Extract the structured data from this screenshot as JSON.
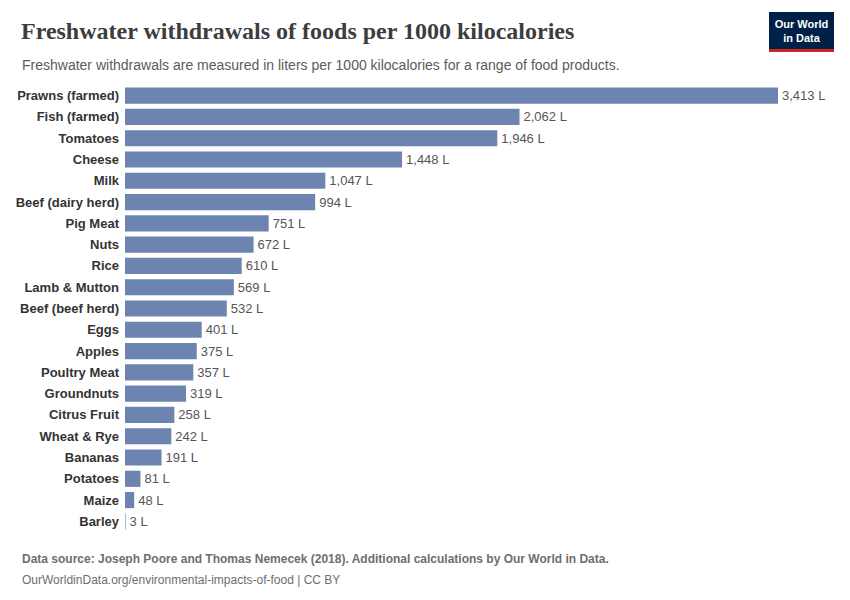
{
  "chart_data": {
    "type": "bar",
    "title": "Freshwater withdrawals of foods per 1000 kilocalories",
    "subtitle": "Freshwater withdrawals are measured in liters per 1000 kilocalories for a range of food products.",
    "source_label": "Data source:",
    "source": "Joseph Poore and Thomas Nemecek (2018). Additional calculations by Our World in Data.",
    "footer": "OurWorldinData.org/environmental-impacts-of-food | CC BY",
    "logo": [
      "Our World",
      "in Data"
    ],
    "categories": [
      "Prawns (farmed)",
      "Fish (farmed)",
      "Tomatoes",
      "Cheese",
      "Milk",
      "Beef (dairy herd)",
      "Pig Meat",
      "Nuts",
      "Rice",
      "Lamb & Mutton",
      "Beef (beef herd)",
      "Eggs",
      "Apples",
      "Poultry Meat",
      "Groundnuts",
      "Citrus Fruit",
      "Wheat & Rye",
      "Bananas",
      "Potatoes",
      "Maize",
      "Barley"
    ],
    "values": [
      3413,
      2062,
      1946,
      1448,
      1047,
      994,
      751,
      672,
      610,
      569,
      532,
      401,
      375,
      357,
      319,
      258,
      242,
      191,
      81,
      48,
      3
    ],
    "value_labels": [
      "3,413 L",
      "2,062 L",
      "1,946 L",
      "1,448 L",
      "1,047 L",
      "994 L",
      "751 L",
      "672 L",
      "610 L",
      "569 L",
      "532 L",
      "401 L",
      "375 L",
      "357 L",
      "319 L",
      "258 L",
      "242 L",
      "191 L",
      "81 L",
      "48 L",
      "3 L"
    ],
    "color": "#6d84b1",
    "orientation": "horizontal",
    "xlim": [
      0,
      3413
    ],
    "data_labels": true,
    "tick_labels": "y",
    "grid": false
  }
}
